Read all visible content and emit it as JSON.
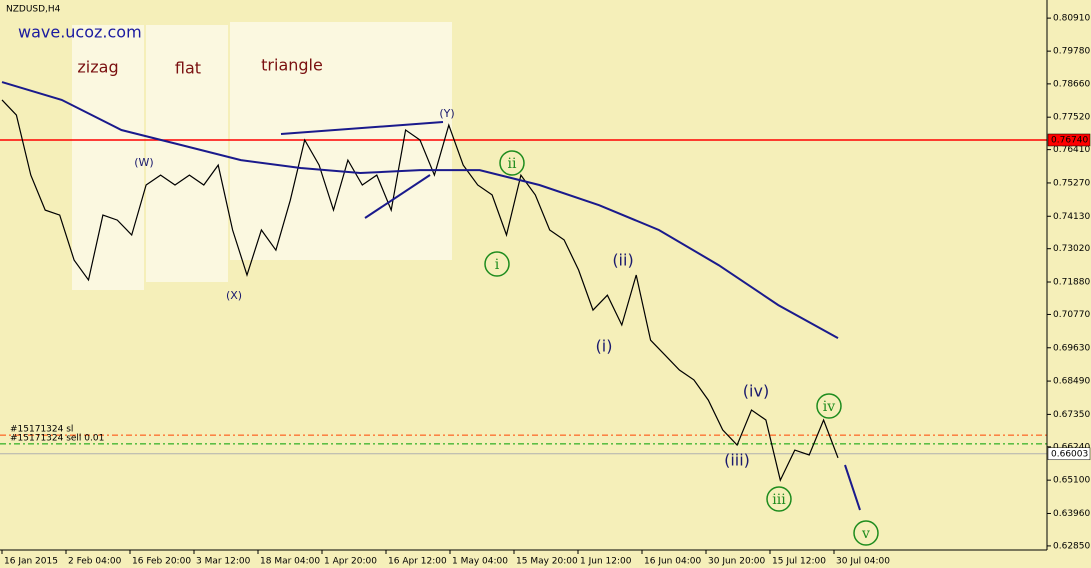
{
  "header": {
    "symbol": "NZDUSD,H4",
    "watermark": "wave.ucoz.com"
  },
  "annotations": {
    "zigzag": "zizag",
    "flat": "flat",
    "triangle": "triangle",
    "w": "(W)",
    "x": "(X)",
    "y": "(Y)",
    "minor_i": "(i)",
    "minor_ii": "(ii)",
    "minor_iii": "(iii)",
    "minor_iv": "(iv)",
    "major_i": "i",
    "major_ii": "ii",
    "major_iii": "iii",
    "major_iv": "iv",
    "major_v": "v"
  },
  "chart_data": {
    "type": "line",
    "x_labels": [
      "16 Jan 2015",
      "2 Feb 04:00",
      "16 Feb 20:00",
      "3 Mar 12:00",
      "18 Mar 04:00",
      "1 Apr 20:00",
      "16 Apr 12:00",
      "1 May 04:00",
      "15 May 20:00",
      "1 Jun 12:00",
      "16 Jun 04:00",
      "30 Jun 20:00",
      "15 Jul 12:00",
      "30 Jul 04:00"
    ],
    "series": [
      {
        "color": "#000000",
        "values": [
          0.7811,
          0.7759,
          0.7554,
          0.7434,
          0.7417,
          0.7263,
          0.7195,
          0.7417,
          0.74,
          0.7349,
          0.752,
          0.7554,
          0.752,
          0.7554,
          0.752,
          0.7588,
          0.7366,
          0.7212,
          0.7366,
          0.7297,
          0.7468,
          0.7674,
          0.7588,
          0.7434,
          0.7605,
          0.752,
          0.7554,
          0.7434,
          0.7708,
          0.7674,
          0.7554,
          0.7725,
          0.7588,
          0.752,
          0.7486,
          0.7349,
          0.7554,
          0.7486,
          0.7366,
          0.7332,
          0.7229,
          0.7092,
          0.7143,
          0.7041,
          0.7212,
          0.6989,
          0.6938,
          0.6887,
          0.6853,
          0.6784,
          0.6682,
          0.663,
          0.675,
          0.6716,
          0.651,
          0.6613,
          0.6596,
          0.6716,
          0.6586
        ]
      },
      {
        "color": "#1a1a8c",
        "values": [
          0.7872,
          0.7811,
          0.7708,
          0.7657,
          0.7605,
          0.7578,
          0.7561,
          0.7571,
          0.7571,
          0.752,
          0.7451,
          0.7366,
          0.7246,
          0.7109,
          0.6996
        ]
      }
    ],
    "ylim": [
      0.6271,
      0.8153
    ],
    "yticks": [
      {
        "value": 0.8091,
        "label": "0.80910"
      },
      {
        "value": 0.7978,
        "label": "0.79780"
      },
      {
        "value": 0.7866,
        "label": "0.78660"
      },
      {
        "value": 0.7752,
        "label": "0.77520"
      },
      {
        "value": 0.7641,
        "label": "0.76410"
      },
      {
        "value": 0.7527,
        "label": "0.75270"
      },
      {
        "value": 0.7413,
        "label": "0.74130"
      },
      {
        "value": 0.7302,
        "label": "0.73020"
      },
      {
        "value": 0.7188,
        "label": "0.71880"
      },
      {
        "value": 0.7077,
        "label": "0.70770"
      },
      {
        "value": 0.6963,
        "label": "0.69630"
      },
      {
        "value": 0.6849,
        "label": "0.68490"
      },
      {
        "value": 0.6735,
        "label": "0.67350"
      },
      {
        "value": 0.6624,
        "label": "0.66240"
      },
      {
        "value": 0.651,
        "label": "0.65100"
      },
      {
        "value": 0.6396,
        "label": "0.63960"
      },
      {
        "value": 0.6285,
        "label": "0.62850"
      }
    ],
    "levels": [
      {
        "value": 0.7674,
        "label": "0.76740",
        "color": "#ff0000",
        "style": "solid",
        "side": "axis"
      },
      {
        "value": 0.66003,
        "label": "0.66003",
        "color": "#b0b0b0",
        "style": "solid",
        "side": "axis"
      },
      {
        "value": 0.6664,
        "label": "#15171324 sl",
        "color": "#ff4500",
        "style": "dashdot",
        "side": "left"
      },
      {
        "value": 0.6634,
        "label": "#15171324 sell 0.01",
        "color": "#00a000",
        "style": "dashdot",
        "side": "left"
      }
    ]
  }
}
